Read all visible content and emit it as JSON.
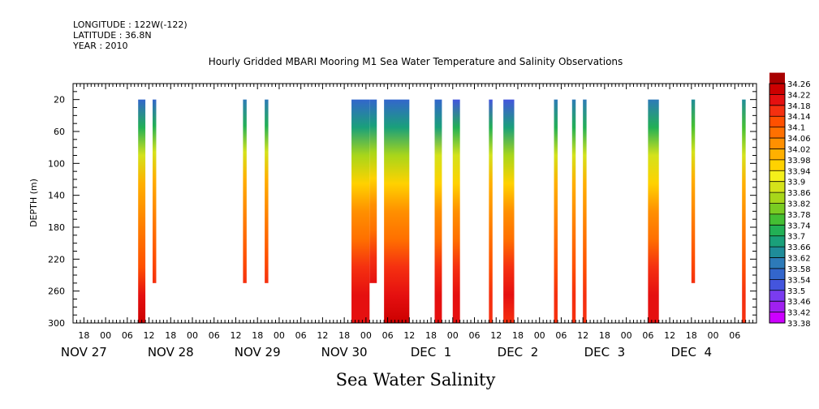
{
  "header": {
    "longitude": "LONGITUDE : 122W(-122)",
    "latitude": "LATITUDE : 36.8N",
    "year": "YEAR : 2010"
  },
  "chart_data": {
    "type": "heatmap",
    "title": "Hourly Gridded MBARI Mooring M1 Sea Water Temperature and Salinity Observations",
    "xlabel": "Sea Water Salinity",
    "ylabel": "DEPTH (m)",
    "x_axis": {
      "unit": "hour",
      "range_hours_from_nov27_00": [
        -9,
        180
      ],
      "hour_ticks": [
        {
          "h": -6,
          "label": "18"
        },
        {
          "h": 0,
          "label": "00"
        },
        {
          "h": 6,
          "label": "06"
        },
        {
          "h": 12,
          "label": "12"
        },
        {
          "h": 18,
          "label": "18"
        },
        {
          "h": 24,
          "label": "00"
        },
        {
          "h": 30,
          "label": "06"
        },
        {
          "h": 36,
          "label": "12"
        },
        {
          "h": 42,
          "label": "18"
        },
        {
          "h": 48,
          "label": "00"
        },
        {
          "h": 54,
          "label": "06"
        },
        {
          "h": 60,
          "label": "12"
        },
        {
          "h": 66,
          "label": "18"
        },
        {
          "h": 72,
          "label": "00"
        },
        {
          "h": 78,
          "label": "06"
        },
        {
          "h": 84,
          "label": "12"
        },
        {
          "h": 90,
          "label": "18"
        },
        {
          "h": 96,
          "label": "00"
        },
        {
          "h": 102,
          "label": "06"
        },
        {
          "h": 108,
          "label": "12"
        },
        {
          "h": 114,
          "label": "18"
        },
        {
          "h": 120,
          "label": "00"
        },
        {
          "h": 126,
          "label": "06"
        },
        {
          "h": 132,
          "label": "12"
        },
        {
          "h": 138,
          "label": "18"
        },
        {
          "h": 144,
          "label": "00"
        },
        {
          "h": 150,
          "label": "06"
        },
        {
          "h": 156,
          "label": "12"
        },
        {
          "h": 162,
          "label": "18"
        },
        {
          "h": 168,
          "label": "00"
        },
        {
          "h": 174,
          "label": "06"
        }
      ],
      "day_labels": [
        {
          "h": -6,
          "label": "NOV 27"
        },
        {
          "h": 18,
          "label": "NOV 28"
        },
        {
          "h": 42,
          "label": "NOV 29"
        },
        {
          "h": 66,
          "label": "NOV 30"
        },
        {
          "h": 90,
          "label": "DEC  1"
        },
        {
          "h": 114,
          "label": "DEC  2"
        },
        {
          "h": 138,
          "label": "DEC  3"
        },
        {
          "h": 162,
          "label": "DEC  4"
        }
      ]
    },
    "y_axis": {
      "range": [
        0,
        300
      ],
      "inverted": true,
      "tick_values": [
        20,
        60,
        100,
        140,
        180,
        220,
        260,
        300
      ]
    },
    "colorbar": {
      "levels": [
        33.38,
        33.42,
        33.46,
        33.5,
        33.54,
        33.58,
        33.62,
        33.66,
        33.7,
        33.74,
        33.78,
        33.82,
        33.86,
        33.9,
        33.94,
        33.98,
        34.02,
        34.06,
        34.1,
        34.14,
        34.18,
        34.22,
        34.26
      ],
      "labels": [
        "33.38",
        "33.42",
        "33.46",
        "33.5",
        "33.54",
        "33.58",
        "33.62",
        "33.66",
        "33.7",
        "33.74",
        "33.78",
        "33.82",
        "33.86",
        "33.9",
        "33.94",
        "33.98",
        "34.02",
        "34.06",
        "34.1",
        "34.14",
        "34.18",
        "34.22",
        "34.26"
      ],
      "colors": [
        "#cc00ff",
        "#a020f0",
        "#7a3cf0",
        "#4455dd",
        "#3366cc",
        "#2d7ab8",
        "#1f8c99",
        "#1aa07a",
        "#22b055",
        "#44bf33",
        "#7acc22",
        "#a8d61a",
        "#d4e21a",
        "#f5f01a",
        "#ffd200",
        "#ffb000",
        "#ff9000",
        "#ff7000",
        "#ff5000",
        "#f53010",
        "#e51010",
        "#cc0000",
        "#a80000"
      ]
    },
    "columns": [
      {
        "start_h": 9,
        "end_h": 11,
        "top_m": 20,
        "bottom_m": 300,
        "profile": [
          33.56,
          33.7,
          33.88,
          33.98,
          34.04,
          34.06,
          34.12,
          34.18,
          34.22
        ]
      },
      {
        "start_h": 13,
        "end_h": 14,
        "top_m": 20,
        "bottom_m": 250,
        "profile": [
          33.56,
          33.7,
          33.88,
          33.98,
          34.04,
          34.06,
          34.12,
          34.16
        ]
      },
      {
        "start_h": 38,
        "end_h": 39,
        "top_m": 20,
        "bottom_m": 250,
        "profile": [
          33.6,
          33.72,
          33.88,
          33.98,
          34.04,
          34.08,
          34.12,
          34.16
        ]
      },
      {
        "start_h": 44,
        "end_h": 45,
        "top_m": 20,
        "bottom_m": 250,
        "profile": [
          33.6,
          33.7,
          33.88,
          33.98,
          34.04,
          34.08,
          34.12,
          34.16
        ]
      },
      {
        "start_h": 68,
        "end_h": 73,
        "top_m": 20,
        "bottom_m": 300,
        "profile": [
          33.56,
          33.68,
          33.84,
          33.96,
          34.04,
          34.06,
          34.14,
          34.18,
          34.2
        ]
      },
      {
        "start_h": 73,
        "end_h": 75,
        "top_m": 20,
        "bottom_m": 250,
        "profile": [
          33.56,
          33.68,
          33.84,
          33.96,
          34.04,
          34.08,
          34.14,
          34.18
        ]
      },
      {
        "start_h": 77,
        "end_h": 84,
        "top_m": 20,
        "bottom_m": 300,
        "profile": [
          33.56,
          33.66,
          33.82,
          33.94,
          34.04,
          34.08,
          34.14,
          34.2,
          34.22
        ]
      },
      {
        "start_h": 91,
        "end_h": 93,
        "top_m": 20,
        "bottom_m": 300,
        "profile": [
          33.56,
          33.68,
          33.86,
          33.96,
          34.04,
          34.08,
          34.14,
          34.18,
          34.18
        ]
      },
      {
        "start_h": 96,
        "end_h": 98,
        "top_m": 20,
        "bottom_m": 300,
        "profile": [
          33.52,
          33.7,
          33.86,
          33.96,
          34.04,
          34.08,
          34.14,
          34.18,
          34.18
        ]
      },
      {
        "start_h": 106,
        "end_h": 107,
        "top_m": 20,
        "bottom_m": 300,
        "profile": [
          33.52,
          33.7,
          33.88,
          33.98,
          34.04,
          34.08,
          34.12,
          34.16,
          34.16
        ]
      },
      {
        "start_h": 110,
        "end_h": 113,
        "top_m": 20,
        "bottom_m": 300,
        "profile": [
          33.52,
          33.66,
          33.84,
          33.96,
          34.04,
          34.08,
          34.14,
          34.18,
          34.16
        ]
      },
      {
        "start_h": 124,
        "end_h": 125,
        "top_m": 20,
        "bottom_m": 300,
        "profile": [
          33.58,
          33.72,
          33.88,
          33.98,
          34.04,
          34.08,
          34.12,
          34.16,
          34.16
        ]
      },
      {
        "start_h": 129,
        "end_h": 130,
        "top_m": 20,
        "bottom_m": 300,
        "profile": [
          33.58,
          33.72,
          33.88,
          33.98,
          34.04,
          34.08,
          34.12,
          34.16,
          34.16
        ]
      },
      {
        "start_h": 132,
        "end_h": 133,
        "top_m": 20,
        "bottom_m": 300,
        "profile": [
          33.6,
          33.72,
          33.88,
          33.98,
          34.04,
          34.08,
          34.12,
          34.16,
          34.16
        ]
      },
      {
        "start_h": 150,
        "end_h": 153,
        "top_m": 20,
        "bottom_m": 300,
        "profile": [
          33.6,
          33.7,
          33.86,
          33.96,
          34.04,
          34.08,
          34.14,
          34.2,
          34.18
        ]
      },
      {
        "start_h": 162,
        "end_h": 163,
        "top_m": 20,
        "bottom_m": 250,
        "profile": [
          33.64,
          33.74,
          33.88,
          33.98,
          34.04,
          34.08,
          34.12,
          34.16
        ]
      },
      {
        "start_h": 176,
        "end_h": 177,
        "top_m": 20,
        "bottom_m": 300,
        "profile": [
          33.64,
          33.74,
          33.88,
          33.98,
          34.04,
          34.08,
          34.12,
          34.16,
          34.16
        ]
      }
    ]
  }
}
